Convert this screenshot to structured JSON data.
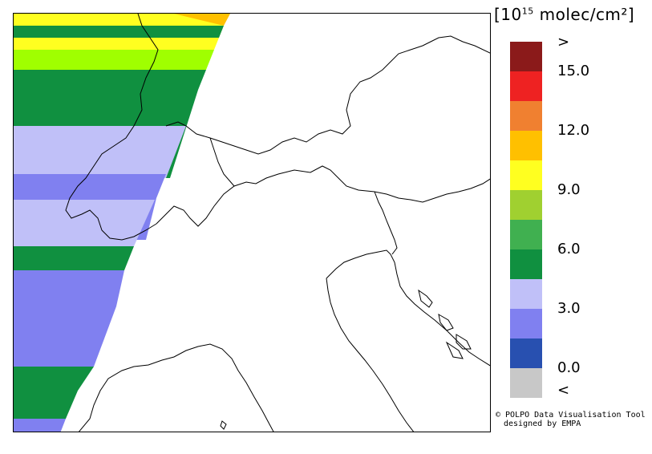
{
  "legend": {
    "title": "[10",
    "title_exp": "15",
    "title_unit": " molec/cm²]",
    "colors": [
      "#8b1a1a",
      "#ee2222",
      "#f08030",
      "#ffc000",
      "#ffff20",
      "#a0d030",
      "#40b050",
      "#109040",
      "#c0c0f8",
      "#8080f0",
      "#2850b0",
      "#c8c8c8"
    ],
    "ticks": [
      ">",
      "15.0",
      "12.0",
      "9.0",
      "6.0",
      "3.0",
      "0.0",
      "<"
    ]
  },
  "credit": {
    "line1": "© POLPO Data Visualisation Tool",
    "line2": "designed by EMPA"
  },
  "swath": {
    "stripes": [
      {
        "color": "#ffc000"
      },
      {
        "color": "#109040"
      },
      {
        "color": "#ffff20"
      },
      {
        "color": "#a0ff00"
      },
      {
        "color": "#109040"
      },
      {
        "color": "#c0c0f8"
      },
      {
        "color": "#8080f0"
      },
      {
        "color": "#c0c0f8"
      },
      {
        "color": "#109040"
      },
      {
        "color": "#8080f0"
      },
      {
        "color": "#109040"
      },
      {
        "color": "#8080f0"
      }
    ]
  }
}
